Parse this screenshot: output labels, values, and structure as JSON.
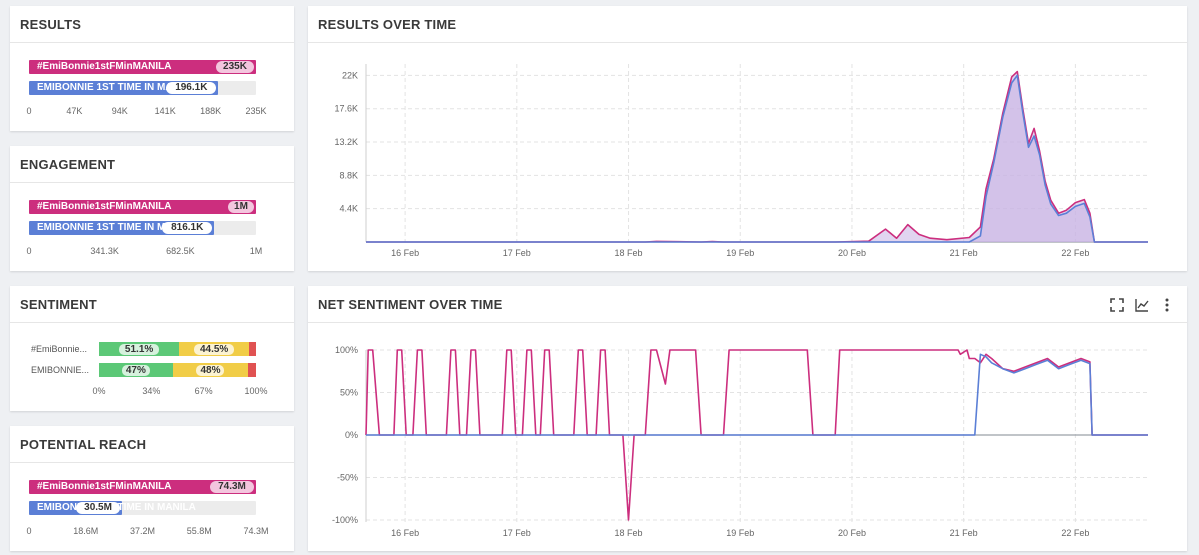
{
  "colors": {
    "pink": "#cc2e7e",
    "blue": "#5b7fd6",
    "green": "#5cc877",
    "yellow": "#f1cd47",
    "red": "#e05252",
    "purple_fill": "#c9b3e3"
  },
  "results": {
    "title": "RESULTS",
    "bars": [
      {
        "label": "#EmiBonnie1stFMinMANILA",
        "value_text": "235K",
        "fraction": 1.0
      },
      {
        "label": "EMIBONNIE 1ST TIME IN MANILA",
        "value_text": "196.1K",
        "fraction": 0.834
      }
    ],
    "axis": [
      "0",
      "47K",
      "94K",
      "141K",
      "188K",
      "235K"
    ]
  },
  "engagement": {
    "title": "ENGAGEMENT",
    "bars": [
      {
        "label": "#EmiBonnie1stFMinMANILA",
        "value_text": "1M",
        "fraction": 1.0
      },
      {
        "label": "EMIBONNIE 1ST TIME IN MANILA",
        "value_text": "816.1K",
        "fraction": 0.816
      }
    ],
    "axis": [
      "0",
      "341.3K",
      "682.5K",
      "1M"
    ]
  },
  "sentiment": {
    "title": "SENTIMENT",
    "rows": [
      {
        "label": "#EmiBonnie...",
        "positive": 51.1,
        "neutral": 44.5,
        "negative": 4.4,
        "positive_text": "51.1%",
        "neutral_text": "44.5%"
      },
      {
        "label": "EMIBONNIE...",
        "positive": 47,
        "neutral": 48,
        "negative": 5,
        "positive_text": "47%",
        "neutral_text": "48%"
      }
    ],
    "axis": [
      "0%",
      "34%",
      "67%",
      "100%"
    ]
  },
  "reach": {
    "title": "POTENTIAL REACH",
    "bars": [
      {
        "label": "#EmiBonnie1stFMinMANILA",
        "value_text": "74.3M",
        "fraction": 1.0
      },
      {
        "label": "EMIBONNIE 1ST TIME IN MANILA",
        "value_text": "30.5M",
        "fraction": 0.41
      }
    ],
    "axis": [
      "0",
      "18.6M",
      "37.2M",
      "55.8M",
      "74.3M"
    ]
  },
  "results_over_time": {
    "title": "RESULTS OVER TIME",
    "chart_data": {
      "type": "area",
      "categories": [
        "16 Feb",
        "17 Feb",
        "18 Feb",
        "19 Feb",
        "20 Feb",
        "21 Feb",
        "22 Feb"
      ],
      "yticks": [
        "22K",
        "17.6K",
        "13.2K",
        "8.8K",
        "4.4K"
      ],
      "ylim": [
        0,
        23500
      ],
      "x_range": [
        0,
        7
      ],
      "series": [
        {
          "color": "pink",
          "points": [
            [
              0,
              0
            ],
            [
              2.5,
              0
            ],
            [
              2.6,
              80
            ],
            [
              2.8,
              40
            ],
            [
              3.0,
              0
            ],
            [
              3.1,
              50
            ],
            [
              3.2,
              0
            ],
            [
              4.2,
              0
            ],
            [
              4.5,
              100
            ],
            [
              4.65,
              1700
            ],
            [
              4.75,
              500
            ],
            [
              4.85,
              2300
            ],
            [
              4.95,
              1000
            ],
            [
              5.05,
              500
            ],
            [
              5.2,
              300
            ],
            [
              5.4,
              600
            ],
            [
              5.5,
              2000
            ],
            [
              5.55,
              7000
            ],
            [
              5.62,
              11000
            ],
            [
              5.7,
              17000
            ],
            [
              5.78,
              21800
            ],
            [
              5.83,
              22500
            ],
            [
              5.88,
              17500
            ],
            [
              5.93,
              13000
            ],
            [
              5.98,
              15000
            ],
            [
              6.03,
              12000
            ],
            [
              6.08,
              8000
            ],
            [
              6.13,
              5500
            ],
            [
              6.2,
              3800
            ],
            [
              6.27,
              4200
            ],
            [
              6.35,
              5200
            ],
            [
              6.43,
              5600
            ],
            [
              6.48,
              3800
            ],
            [
              6.52,
              0
            ],
            [
              7,
              0
            ]
          ]
        },
        {
          "color": "blue",
          "points": [
            [
              0,
              0
            ],
            [
              5.4,
              0
            ],
            [
              5.5,
              800
            ],
            [
              5.55,
              6000
            ],
            [
              5.62,
              10500
            ],
            [
              5.7,
              16500
            ],
            [
              5.78,
              21000
            ],
            [
              5.83,
              22000
            ],
            [
              5.88,
              17000
            ],
            [
              5.93,
              12500
            ],
            [
              5.98,
              14000
            ],
            [
              6.03,
              11500
            ],
            [
              6.08,
              7500
            ],
            [
              6.13,
              5000
            ],
            [
              6.2,
              3500
            ],
            [
              6.27,
              3800
            ],
            [
              6.35,
              4700
            ],
            [
              6.43,
              5100
            ],
            [
              6.48,
              3300
            ],
            [
              6.52,
              0
            ],
            [
              7,
              0
            ]
          ]
        }
      ]
    }
  },
  "net_sentiment": {
    "title": "NET SENTIMENT OVER TIME",
    "chart_data": {
      "type": "line",
      "categories": [
        "16 Feb",
        "17 Feb",
        "18 Feb",
        "19 Feb",
        "20 Feb",
        "21 Feb",
        "22 Feb"
      ],
      "yticks": [
        "100%",
        "50%",
        "0%",
        "-50%",
        "-100%"
      ],
      "ylim": [
        -100,
        100
      ],
      "x_range": [
        0,
        7
      ],
      "series": [
        {
          "color": "pink",
          "points": [
            [
              0,
              0
            ],
            [
              0.02,
              100
            ],
            [
              0.06,
              100
            ],
            [
              0.12,
              0
            ],
            [
              0.25,
              0
            ],
            [
              0.28,
              100
            ],
            [
              0.32,
              100
            ],
            [
              0.36,
              0
            ],
            [
              0.42,
              0
            ],
            [
              0.46,
              100
            ],
            [
              0.5,
              100
            ],
            [
              0.54,
              0
            ],
            [
              0.72,
              0
            ],
            [
              0.76,
              100
            ],
            [
              0.8,
              100
            ],
            [
              0.84,
              0
            ],
            [
              0.9,
              0
            ],
            [
              0.94,
              100
            ],
            [
              0.98,
              100
            ],
            [
              1.02,
              0
            ],
            [
              1.22,
              0
            ],
            [
              1.26,
              100
            ],
            [
              1.3,
              100
            ],
            [
              1.34,
              0
            ],
            [
              1.4,
              0
            ],
            [
              1.44,
              100
            ],
            [
              1.48,
              100
            ],
            [
              1.52,
              0
            ],
            [
              1.56,
              0
            ],
            [
              1.6,
              100
            ],
            [
              1.64,
              100
            ],
            [
              1.68,
              0
            ],
            [
              1.86,
              0
            ],
            [
              1.9,
              100
            ],
            [
              1.94,
              100
            ],
            [
              1.98,
              0
            ],
            [
              2.06,
              0
            ],
            [
              2.1,
              100
            ],
            [
              2.14,
              100
            ],
            [
              2.18,
              0
            ],
            [
              2.3,
              0
            ],
            [
              2.35,
              -100
            ],
            [
              2.4,
              0
            ],
            [
              2.5,
              0
            ],
            [
              2.55,
              100
            ],
            [
              2.6,
              100
            ],
            [
              2.68,
              60
            ],
            [
              2.72,
              100
            ],
            [
              2.95,
              100
            ],
            [
              3.0,
              0
            ],
            [
              3.2,
              0
            ],
            [
              3.25,
              100
            ],
            [
              3.3,
              100
            ],
            [
              3.95,
              100
            ],
            [
              4.0,
              0
            ],
            [
              4.2,
              0
            ],
            [
              4.24,
              100
            ],
            [
              4.3,
              100
            ],
            [
              5.3,
              100
            ],
            [
              5.32,
              95
            ],
            [
              5.38,
              100
            ],
            [
              5.4,
              90
            ],
            [
              5.45,
              90
            ],
            [
              5.5,
              85
            ],
            [
              5.55,
              95
            ],
            [
              5.6,
              90
            ],
            [
              5.7,
              78
            ],
            [
              5.8,
              75
            ],
            [
              5.9,
              80
            ],
            [
              6.0,
              85
            ],
            [
              6.1,
              90
            ],
            [
              6.2,
              80
            ],
            [
              6.3,
              85
            ],
            [
              6.4,
              90
            ],
            [
              6.48,
              86
            ],
            [
              6.5,
              0
            ],
            [
              7,
              0
            ]
          ]
        },
        {
          "color": "blue",
          "points": [
            [
              0,
              0
            ],
            [
              5.45,
              0
            ],
            [
              5.5,
              95
            ],
            [
              5.55,
              92
            ],
            [
              5.6,
              85
            ],
            [
              5.7,
              78
            ],
            [
              5.8,
              73
            ],
            [
              5.9,
              78
            ],
            [
              6.0,
              83
            ],
            [
              6.1,
              88
            ],
            [
              6.2,
              78
            ],
            [
              6.3,
              83
            ],
            [
              6.4,
              88
            ],
            [
              6.48,
              84
            ],
            [
              6.5,
              0
            ],
            [
              7,
              0
            ]
          ]
        }
      ]
    }
  },
  "toolbar": {
    "icons": [
      "fullscreen-icon",
      "line-chart-icon",
      "more-vertical-icon"
    ]
  }
}
